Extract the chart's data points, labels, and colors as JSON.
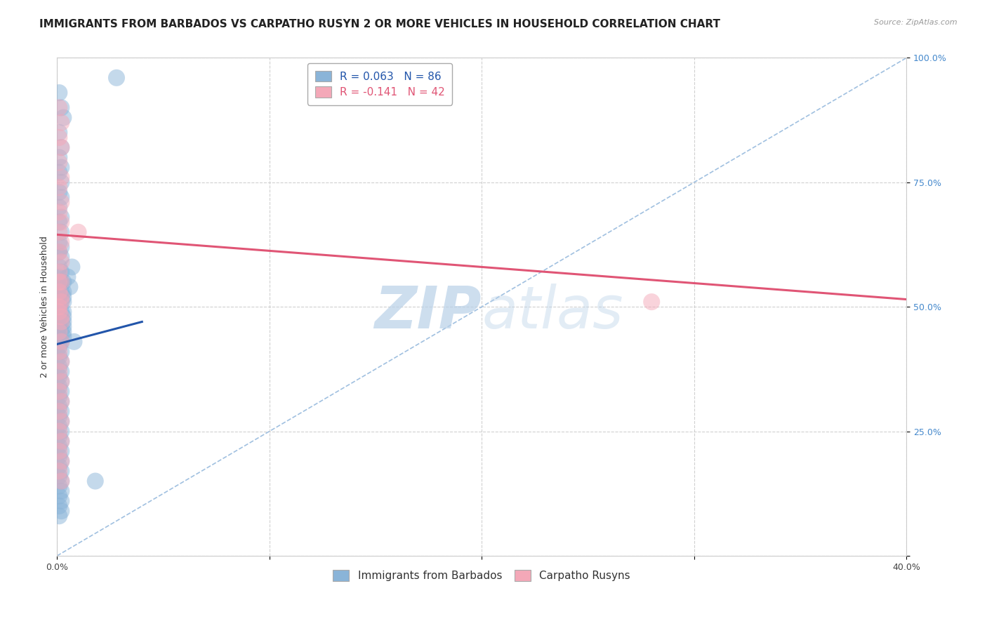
{
  "title": "IMMIGRANTS FROM BARBADOS VS CARPATHO RUSYN 2 OR MORE VEHICLES IN HOUSEHOLD CORRELATION CHART",
  "source": "Source: ZipAtlas.com",
  "ylabel": "2 or more Vehicles in Household",
  "xlim": [
    0.0,
    0.4
  ],
  "ylim": [
    0.0,
    1.0
  ],
  "xticks": [
    0.0,
    0.1,
    0.2,
    0.3,
    0.4
  ],
  "xticklabels": [
    "0.0%",
    "",
    "",
    "",
    "40.0%"
  ],
  "yticks": [
    0.0,
    0.25,
    0.5,
    0.75,
    1.0
  ],
  "yticklabels": [
    "",
    "25.0%",
    "50.0%",
    "75.0%",
    "100.0%"
  ],
  "blue_color": "#8ab4d8",
  "pink_color": "#f4a8b8",
  "blue_line_color": "#2255aa",
  "pink_line_color": "#e05575",
  "ref_line_color": "#a0c0e0",
  "blue_scatter_x": [
    0.001,
    0.002,
    0.003,
    0.001,
    0.002,
    0.001,
    0.002,
    0.001,
    0.002,
    0.001,
    0.002,
    0.001,
    0.002,
    0.001,
    0.002,
    0.001,
    0.002,
    0.001,
    0.002,
    0.001,
    0.002,
    0.001,
    0.002,
    0.001,
    0.002,
    0.001,
    0.002,
    0.001,
    0.002,
    0.001,
    0.002,
    0.001,
    0.002,
    0.001,
    0.002,
    0.001,
    0.002,
    0.001,
    0.002,
    0.001,
    0.002,
    0.001,
    0.002,
    0.001,
    0.002,
    0.001,
    0.002,
    0.001,
    0.002,
    0.001,
    0.002,
    0.001,
    0.002,
    0.001,
    0.002,
    0.001,
    0.002,
    0.001,
    0.002,
    0.001,
    0.002,
    0.001,
    0.002,
    0.001,
    0.002,
    0.001,
    0.002,
    0.001,
    0.002,
    0.001,
    0.003,
    0.003,
    0.003,
    0.003,
    0.003,
    0.003,
    0.003,
    0.003,
    0.003,
    0.003,
    0.028,
    0.018,
    0.005,
    0.006,
    0.007,
    0.008
  ],
  "blue_scatter_y": [
    0.93,
    0.9,
    0.88,
    0.85,
    0.82,
    0.8,
    0.78,
    0.77,
    0.75,
    0.73,
    0.72,
    0.7,
    0.68,
    0.67,
    0.65,
    0.63,
    0.62,
    0.61,
    0.6,
    0.58,
    0.57,
    0.56,
    0.55,
    0.54,
    0.53,
    0.52,
    0.51,
    0.5,
    0.49,
    0.48,
    0.47,
    0.46,
    0.45,
    0.44,
    0.43,
    0.42,
    0.41,
    0.4,
    0.39,
    0.38,
    0.37,
    0.36,
    0.35,
    0.34,
    0.33,
    0.32,
    0.31,
    0.3,
    0.29,
    0.28,
    0.27,
    0.26,
    0.25,
    0.24,
    0.23,
    0.22,
    0.21,
    0.2,
    0.19,
    0.18,
    0.17,
    0.16,
    0.15,
    0.14,
    0.13,
    0.12,
    0.11,
    0.1,
    0.09,
    0.08,
    0.55,
    0.53,
    0.52,
    0.51,
    0.49,
    0.48,
    0.47,
    0.46,
    0.45,
    0.44,
    0.96,
    0.15,
    0.56,
    0.54,
    0.58,
    0.43
  ],
  "pink_scatter_x": [
    0.001,
    0.002,
    0.001,
    0.002,
    0.001,
    0.002,
    0.001,
    0.002,
    0.001,
    0.002,
    0.001,
    0.002,
    0.001,
    0.002,
    0.001,
    0.002,
    0.001,
    0.002,
    0.001,
    0.002,
    0.001,
    0.002,
    0.001,
    0.002,
    0.001,
    0.002,
    0.001,
    0.002,
    0.001,
    0.002,
    0.001,
    0.002,
    0.001,
    0.002,
    0.001,
    0.002,
    0.001,
    0.002,
    0.001,
    0.002,
    0.28,
    0.01
  ],
  "pink_scatter_y": [
    0.9,
    0.87,
    0.84,
    0.82,
    0.79,
    0.76,
    0.74,
    0.71,
    0.69,
    0.67,
    0.65,
    0.63,
    0.61,
    0.59,
    0.57,
    0.55,
    0.53,
    0.51,
    0.49,
    0.47,
    0.45,
    0.43,
    0.41,
    0.39,
    0.37,
    0.35,
    0.33,
    0.31,
    0.29,
    0.27,
    0.25,
    0.23,
    0.21,
    0.19,
    0.17,
    0.15,
    0.55,
    0.52,
    0.5,
    0.48,
    0.51,
    0.65
  ],
  "blue_trend_x": [
    0.0,
    0.04
  ],
  "blue_trend_y": [
    0.425,
    0.47
  ],
  "pink_trend_x": [
    0.0,
    0.4
  ],
  "pink_trend_y": [
    0.645,
    0.515
  ],
  "ref_line_x": [
    0.0,
    0.4
  ],
  "ref_line_y": [
    0.0,
    1.0
  ],
  "watermark": "ZIPatlas",
  "watermark_color": "#b8d0e8",
  "background_color": "#ffffff",
  "grid_color": "#d0d0d0",
  "title_fontsize": 11,
  "axis_label_fontsize": 9,
  "tick_fontsize": 9,
  "legend_fontsize": 11,
  "ytick_color": "#4488cc",
  "xtick_color": "#444444"
}
